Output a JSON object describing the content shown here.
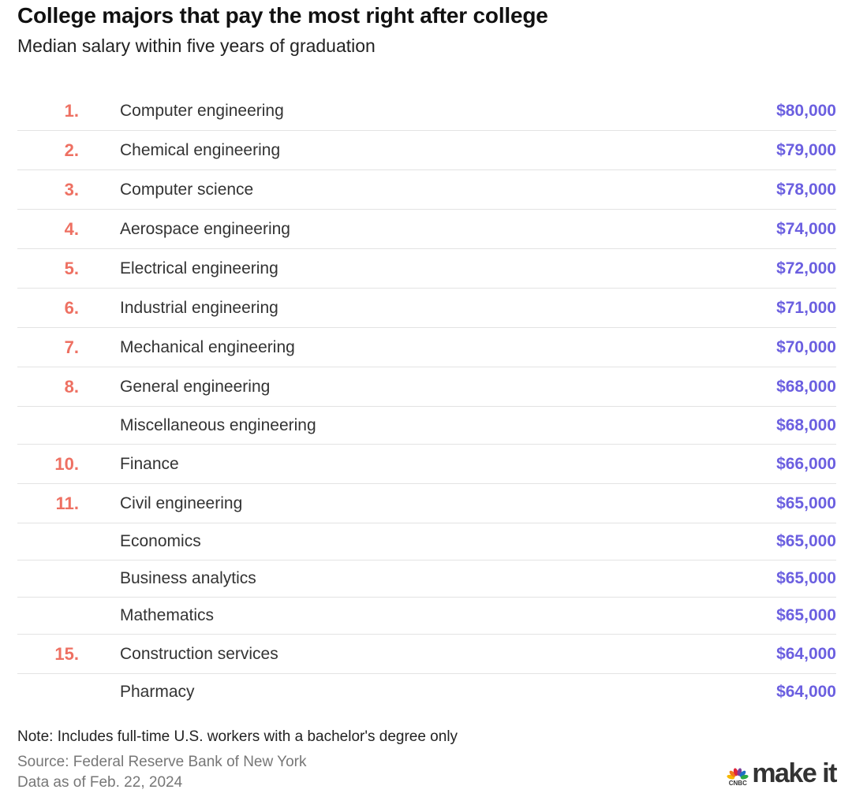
{
  "chart_data": {
    "type": "table",
    "title": "College majors that pay the most right after college",
    "subtitle": "Median salary within five years of graduation",
    "rows": [
      {
        "rank": "1.",
        "major": "Computer engineering",
        "salary": "$80,000",
        "value": 80000
      },
      {
        "rank": "2.",
        "major": "Chemical engineering",
        "salary": "$79,000",
        "value": 79000
      },
      {
        "rank": "3.",
        "major": "Computer science",
        "salary": "$78,000",
        "value": 78000
      },
      {
        "rank": "4.",
        "major": "Aerospace engineering",
        "salary": "$74,000",
        "value": 74000
      },
      {
        "rank": "5.",
        "major": "Electrical engineering",
        "salary": "$72,000",
        "value": 72000
      },
      {
        "rank": "6.",
        "major": "Industrial engineering",
        "salary": "$71,000",
        "value": 71000
      },
      {
        "rank": "7.",
        "major": "Mechanical engineering",
        "salary": "$70,000",
        "value": 70000
      },
      {
        "rank": "8.",
        "major": "General engineering",
        "salary": "$68,000",
        "value": 68000
      },
      {
        "rank": "",
        "major": "Miscellaneous engineering",
        "salary": "$68,000",
        "value": 68000
      },
      {
        "rank": "10.",
        "major": "Finance",
        "salary": "$66,000",
        "value": 66000
      },
      {
        "rank": "11.",
        "major": "Civil engineering",
        "salary": "$65,000",
        "value": 65000
      },
      {
        "rank": "",
        "major": "Economics",
        "salary": "$65,000",
        "value": 65000
      },
      {
        "rank": "",
        "major": "Business analytics",
        "salary": "$65,000",
        "value": 65000
      },
      {
        "rank": "",
        "major": "Mathematics",
        "salary": "$65,000",
        "value": 65000
      },
      {
        "rank": "15.",
        "major": "Construction services",
        "salary": "$64,000",
        "value": 64000
      },
      {
        "rank": "",
        "major": "Pharmacy",
        "salary": "$64,000",
        "value": 64000
      }
    ]
  },
  "footer": {
    "note": "Note: Includes full-time U.S. workers with a bachelor's degree only",
    "source": "Source: Federal Reserve Bank of New York",
    "date": "Data as of Feb. 22, 2024"
  },
  "logo": {
    "network": "CNBC",
    "brand": "make it"
  },
  "colors": {
    "rank": "#ee7062",
    "salary": "#6b5fe0",
    "peacock": [
      "#f6b800",
      "#f27a1a",
      "#e0243a",
      "#7a3f9b",
      "#1f6fc5",
      "#2aa845"
    ]
  }
}
